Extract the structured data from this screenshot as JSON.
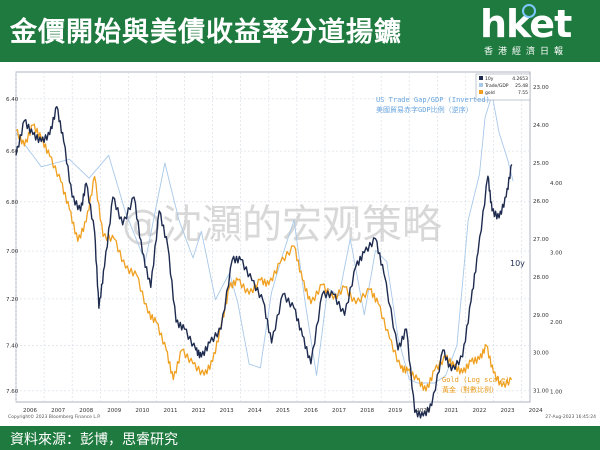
{
  "header": {
    "title": "金價開始與美債收益率分道揚鑣",
    "brand": "hket",
    "brand_sub": "香港經濟日報"
  },
  "footer": {
    "source": "資料來源：彭博，思睿研究"
  },
  "watermark": "@沈灝的宏观策略",
  "colors": {
    "header_bg": "#1f7a3f",
    "yield_line": "#1e2b4f",
    "gold_line": "#f0a020",
    "gap_line": "#a8c8e8",
    "annotation_gap": "#6aa6e0",
    "annotation_gold": "#e89a1a"
  },
  "chart_data": {
    "type": "line",
    "copyright": "Copyright© 2023 Bloomberg Finance L.P.",
    "date_stamp": "27-Aug-2023 16:45:24",
    "x_ticks": [
      "2006",
      "2007",
      "2008",
      "2009",
      "2010",
      "2011",
      "2012",
      "2013",
      "2014",
      "2015",
      "2016",
      "2017",
      "2018",
      "2019",
      "2020",
      "2021",
      "2022",
      "2023",
      "2024"
    ],
    "xlim": [
      2006,
      2024.3
    ],
    "left_axis": {
      "ticks": [
        "6.40",
        "6.60",
        "6.80",
        "7.00",
        "7.20",
        "7.40",
        "7.60"
      ],
      "ylim": [
        6.3,
        7.65
      ],
      "scale": "log",
      "inverted": true
    },
    "right_axis_gold": {
      "ticks": [
        "4.00",
        "3.00",
        "2.00",
        "1.00"
      ],
      "ylim": [
        0.85,
        5.6
      ],
      "inverted": false
    },
    "right_axis_gap": {
      "ticks": [
        "23.00",
        "24.00",
        "25.00",
        "26.00",
        "27.00",
        "28.00",
        "29.00",
        "30.00",
        "31.00"
      ],
      "ylim": [
        22.6,
        31.3
      ],
      "inverted": true
    },
    "legend": [
      {
        "name": "10y",
        "value": "4.2653"
      },
      {
        "name": "Trade/GDP",
        "value": "25.48"
      },
      {
        "name": "gold",
        "value": "7.55"
      }
    ],
    "annotations": {
      "gap_title": "US Trade Gap/GDP (Inverted)",
      "gap_subtitle": "美國貿易赤字GDP比例（逆序）",
      "yield_label": "10y",
      "gold_title": "Gold (Log scale)",
      "gold_subtitle": "黃金（對數比例）"
    },
    "series": [
      {
        "name": "10y",
        "axis": "gold",
        "points": [
          [
            2006.0,
            4.4
          ],
          [
            2006.3,
            4.9
          ],
          [
            2006.6,
            4.7
          ],
          [
            2006.9,
            4.6
          ],
          [
            2007.2,
            4.7
          ],
          [
            2007.45,
            5.1
          ],
          [
            2007.7,
            4.6
          ],
          [
            2008.0,
            3.8
          ],
          [
            2008.3,
            3.6
          ],
          [
            2008.5,
            4.0
          ],
          [
            2008.8,
            3.3
          ],
          [
            2008.95,
            2.2
          ],
          [
            2009.15,
            2.8
          ],
          [
            2009.45,
            3.8
          ],
          [
            2009.8,
            3.4
          ],
          [
            2010.2,
            3.8
          ],
          [
            2010.5,
            3.0
          ],
          [
            2010.8,
            2.5
          ],
          [
            2011.1,
            3.6
          ],
          [
            2011.4,
            3.1
          ],
          [
            2011.7,
            2.0
          ],
          [
            2012.0,
            1.9
          ],
          [
            2012.4,
            1.6
          ],
          [
            2012.6,
            1.5
          ],
          [
            2012.9,
            1.7
          ],
          [
            2013.3,
            1.9
          ],
          [
            2013.7,
            2.9
          ],
          [
            2014.0,
            2.9
          ],
          [
            2014.4,
            2.6
          ],
          [
            2014.8,
            2.3
          ],
          [
            2015.1,
            1.7
          ],
          [
            2015.5,
            2.4
          ],
          [
            2015.9,
            2.2
          ],
          [
            2016.2,
            1.8
          ],
          [
            2016.5,
            1.4
          ],
          [
            2016.9,
            2.4
          ],
          [
            2017.3,
            2.4
          ],
          [
            2017.7,
            2.1
          ],
          [
            2018.1,
            2.8
          ],
          [
            2018.4,
            3.0
          ],
          [
            2018.8,
            3.2
          ],
          [
            2019.1,
            2.7
          ],
          [
            2019.6,
            1.6
          ],
          [
            2019.9,
            1.9
          ],
          [
            2020.2,
            0.7
          ],
          [
            2020.5,
            0.65
          ],
          [
            2020.8,
            0.8
          ],
          [
            2021.2,
            1.6
          ],
          [
            2021.5,
            1.3
          ],
          [
            2021.9,
            1.5
          ],
          [
            2022.2,
            2.3
          ],
          [
            2022.45,
            3.0
          ],
          [
            2022.8,
            4.1
          ],
          [
            2022.95,
            3.6
          ],
          [
            2023.2,
            3.5
          ],
          [
            2023.45,
            3.8
          ],
          [
            2023.65,
            4.27
          ]
        ]
      },
      {
        "name": "gold",
        "axis": "left",
        "points": [
          [
            2006.0,
            6.52
          ],
          [
            2006.3,
            6.58
          ],
          [
            2006.6,
            6.5
          ],
          [
            2006.9,
            6.55
          ],
          [
            2007.2,
            6.62
          ],
          [
            2007.6,
            6.72
          ],
          [
            2007.9,
            6.83
          ],
          [
            2008.2,
            6.96
          ],
          [
            2008.5,
            6.88
          ],
          [
            2008.8,
            6.7
          ],
          [
            2009.1,
            6.94
          ],
          [
            2009.5,
            6.95
          ],
          [
            2009.9,
            7.07
          ],
          [
            2010.3,
            7.1
          ],
          [
            2010.7,
            7.26
          ],
          [
            2011.0,
            7.3
          ],
          [
            2011.35,
            7.42
          ],
          [
            2011.6,
            7.55
          ],
          [
            2011.9,
            7.42
          ],
          [
            2012.3,
            7.48
          ],
          [
            2012.7,
            7.53
          ],
          [
            2013.0,
            7.47
          ],
          [
            2013.3,
            7.32
          ],
          [
            2013.6,
            7.15
          ],
          [
            2013.9,
            7.12
          ],
          [
            2014.3,
            7.18
          ],
          [
            2014.7,
            7.12
          ],
          [
            2015.0,
            7.14
          ],
          [
            2015.4,
            7.05
          ],
          [
            2015.9,
            6.98
          ],
          [
            2016.2,
            7.12
          ],
          [
            2016.5,
            7.22
          ],
          [
            2016.9,
            7.14
          ],
          [
            2017.3,
            7.2
          ],
          [
            2017.7,
            7.15
          ],
          [
            2018.1,
            7.22
          ],
          [
            2018.6,
            7.16
          ],
          [
            2018.9,
            7.22
          ],
          [
            2019.3,
            7.37
          ],
          [
            2019.7,
            7.5
          ],
          [
            2019.95,
            7.51
          ],
          [
            2020.3,
            7.55
          ],
          [
            2020.6,
            7.6
          ],
          [
            2020.9,
            7.51
          ],
          [
            2021.3,
            7.45
          ],
          [
            2021.6,
            7.49
          ],
          [
            2021.9,
            7.52
          ],
          [
            2022.2,
            7.47
          ],
          [
            2022.5,
            7.46
          ],
          [
            2022.75,
            7.4
          ],
          [
            2023.0,
            7.52
          ],
          [
            2023.3,
            7.58
          ],
          [
            2023.65,
            7.55
          ]
        ]
      },
      {
        "name": "Trade/GDP",
        "axis": "gap",
        "points": [
          [
            2006.0,
            24.2
          ],
          [
            2006.9,
            25.1
          ],
          [
            2007.9,
            24.9
          ],
          [
            2008.6,
            25.4
          ],
          [
            2009.3,
            24.8
          ],
          [
            2009.9,
            26.3
          ],
          [
            2010.6,
            27.6
          ],
          [
            2011.3,
            25.0
          ],
          [
            2011.8,
            26.5
          ],
          [
            2012.3,
            27.5
          ],
          [
            2012.6,
            26.8
          ],
          [
            2013.1,
            28.6
          ],
          [
            2013.6,
            27.9
          ],
          [
            2013.9,
            28.7
          ],
          [
            2014.3,
            30.3
          ],
          [
            2014.7,
            30.4
          ],
          [
            2015.1,
            28.4
          ],
          [
            2015.5,
            27.4
          ],
          [
            2015.9,
            26.5
          ],
          [
            2016.3,
            28.7
          ],
          [
            2016.7,
            30.6
          ],
          [
            2017.1,
            28.3
          ],
          [
            2017.5,
            28.5
          ],
          [
            2017.9,
            27.0
          ],
          [
            2018.4,
            29.0
          ],
          [
            2018.8,
            27.3
          ],
          [
            2019.2,
            27.6
          ],
          [
            2019.6,
            29.6
          ],
          [
            2020.0,
            30.7
          ],
          [
            2020.3,
            30.8
          ],
          [
            2020.6,
            30.8
          ],
          [
            2020.9,
            30.8
          ],
          [
            2021.3,
            30.6
          ],
          [
            2021.7,
            29.8
          ],
          [
            2022.1,
            26.5
          ],
          [
            2022.5,
            25.3
          ],
          [
            2022.7,
            23.8
          ],
          [
            2022.95,
            23.2
          ],
          [
            2023.2,
            24.2
          ],
          [
            2023.5,
            24.9
          ],
          [
            2023.7,
            25.48
          ]
        ]
      }
    ]
  }
}
